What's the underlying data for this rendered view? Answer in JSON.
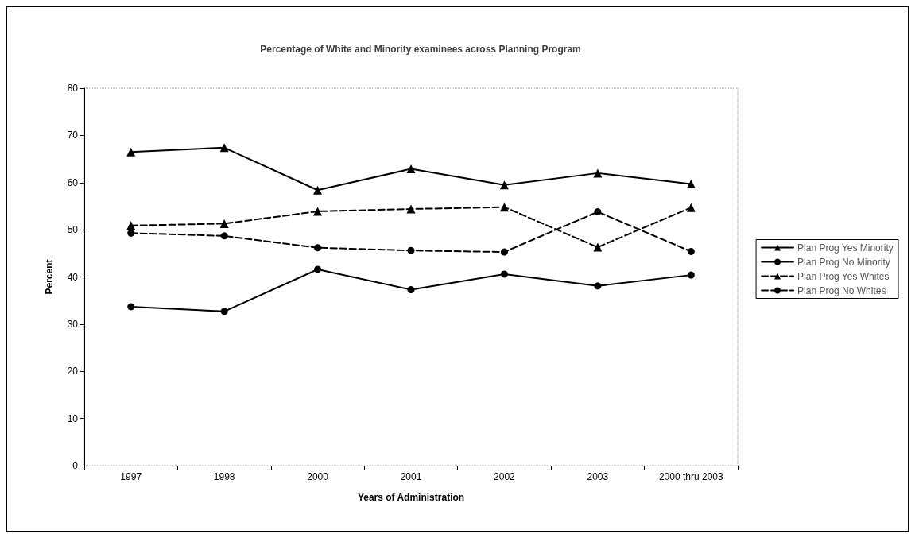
{
  "chart_data": {
    "type": "line",
    "title": "Percentage of White and Minority examinees across Planning Program",
    "xlabel": "Years of Administration",
    "ylabel": "Percent",
    "categories": [
      "1997",
      "1998",
      "2000",
      "2001",
      "2002",
      "2003",
      "2000 thru 2003"
    ],
    "ylim": [
      0,
      80
    ],
    "yticks": [
      0,
      10,
      20,
      30,
      40,
      50,
      60,
      70,
      80
    ],
    "grid": false,
    "legend": "right",
    "series": [
      {
        "name": "Plan Prog Yes Minority",
        "color": "#000000",
        "marker": "triangle",
        "line_style": "solid",
        "values": [
          66.5,
          67.4,
          58.4,
          62.9,
          59.5,
          62.0,
          59.7
        ]
      },
      {
        "name": "Plan Prog No Minority",
        "color": "#000000",
        "marker": "circle",
        "line_style": "solid",
        "values": [
          33.7,
          32.7,
          41.6,
          37.3,
          40.6,
          38.1,
          40.4
        ]
      },
      {
        "name": "Plan Prog Yes Whites",
        "color": "#000000",
        "marker": "triangle",
        "line_style": "dashed",
        "values": [
          50.9,
          51.3,
          53.9,
          54.4,
          54.8,
          46.3,
          54.7
        ]
      },
      {
        "name": "Plan Prog No Whites",
        "color": "#000000",
        "marker": "circle",
        "line_style": "dashed",
        "values": [
          49.3,
          48.7,
          46.2,
          45.6,
          45.3,
          53.8,
          45.4
        ]
      }
    ]
  }
}
